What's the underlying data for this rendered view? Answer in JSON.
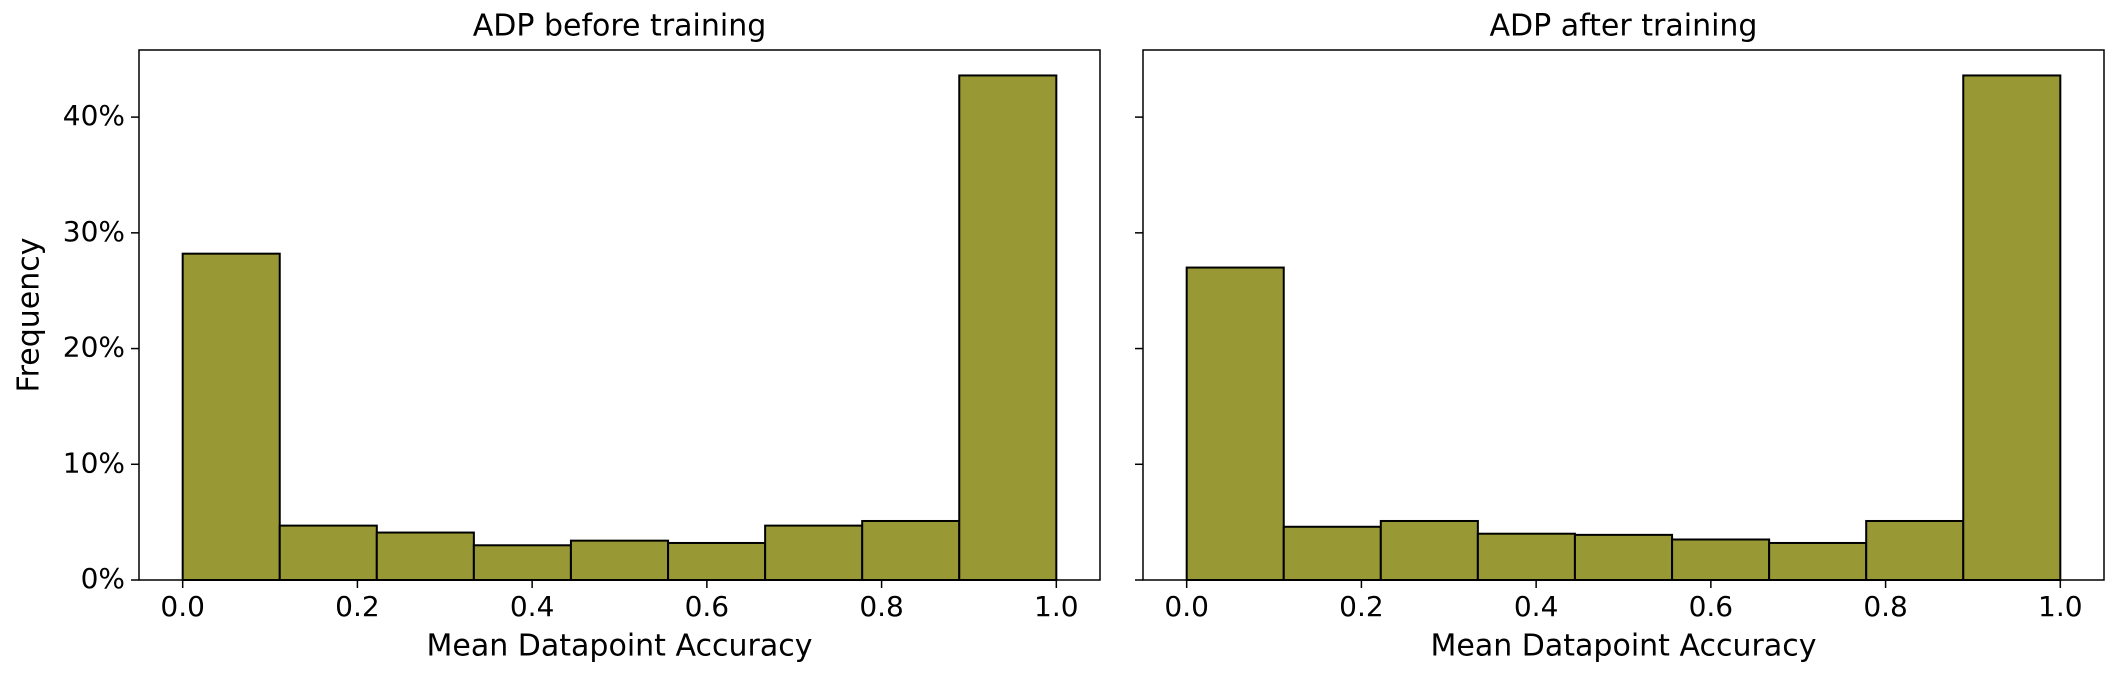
{
  "chart_data": [
    {
      "type": "histogram",
      "title": "ADP before training",
      "xlabel": "Mean Datapoint Accuracy",
      "ylabel": "Frequency",
      "bins": [
        0,
        0.1111,
        0.2222,
        0.3333,
        0.4444,
        0.5556,
        0.6667,
        0.7778,
        0.8889,
        1
      ],
      "values": [
        28.2,
        4.7,
        4.1,
        3.0,
        3.4,
        3.2,
        4.7,
        5.1,
        43.6
      ],
      "color": "#989834",
      "edgecolor": "#000000",
      "xlim": [
        -0.05,
        1.05
      ],
      "ylim": [
        0,
        45.8
      ],
      "xticks": [
        {
          "value": 0,
          "label": "0.0"
        },
        0.2,
        0.4,
        0.6,
        0.8,
        {
          "value": 1,
          "label": "1.0"
        }
      ],
      "yticks": [
        {
          "value": 0,
          "label": "0%"
        },
        {
          "value": 10,
          "label": "10%"
        },
        {
          "value": 20,
          "label": "20%"
        },
        {
          "value": 30,
          "label": "30%"
        },
        {
          "value": 40,
          "label": "40%"
        }
      ]
    },
    {
      "type": "histogram",
      "title": "ADP after training",
      "xlabel": "Mean Datapoint Accuracy",
      "bins": [
        0,
        0.1111,
        0.2222,
        0.3333,
        0.4444,
        0.5556,
        0.6667,
        0.7778,
        0.8889,
        1
      ],
      "values": [
        27.0,
        4.6,
        5.1,
        4.0,
        3.9,
        3.5,
        3.2,
        5.1,
        43.6
      ],
      "color": "#989834",
      "edgecolor": "#000000",
      "xlim": [
        -0.05,
        1.05
      ],
      "ylim": [
        0,
        45.8
      ],
      "sharey": true,
      "xticks": [
        {
          "value": 0,
          "label": "0.0"
        },
        0.2,
        0.4,
        0.6,
        0.8,
        {
          "value": 1,
          "label": "1.0"
        }
      ]
    }
  ]
}
